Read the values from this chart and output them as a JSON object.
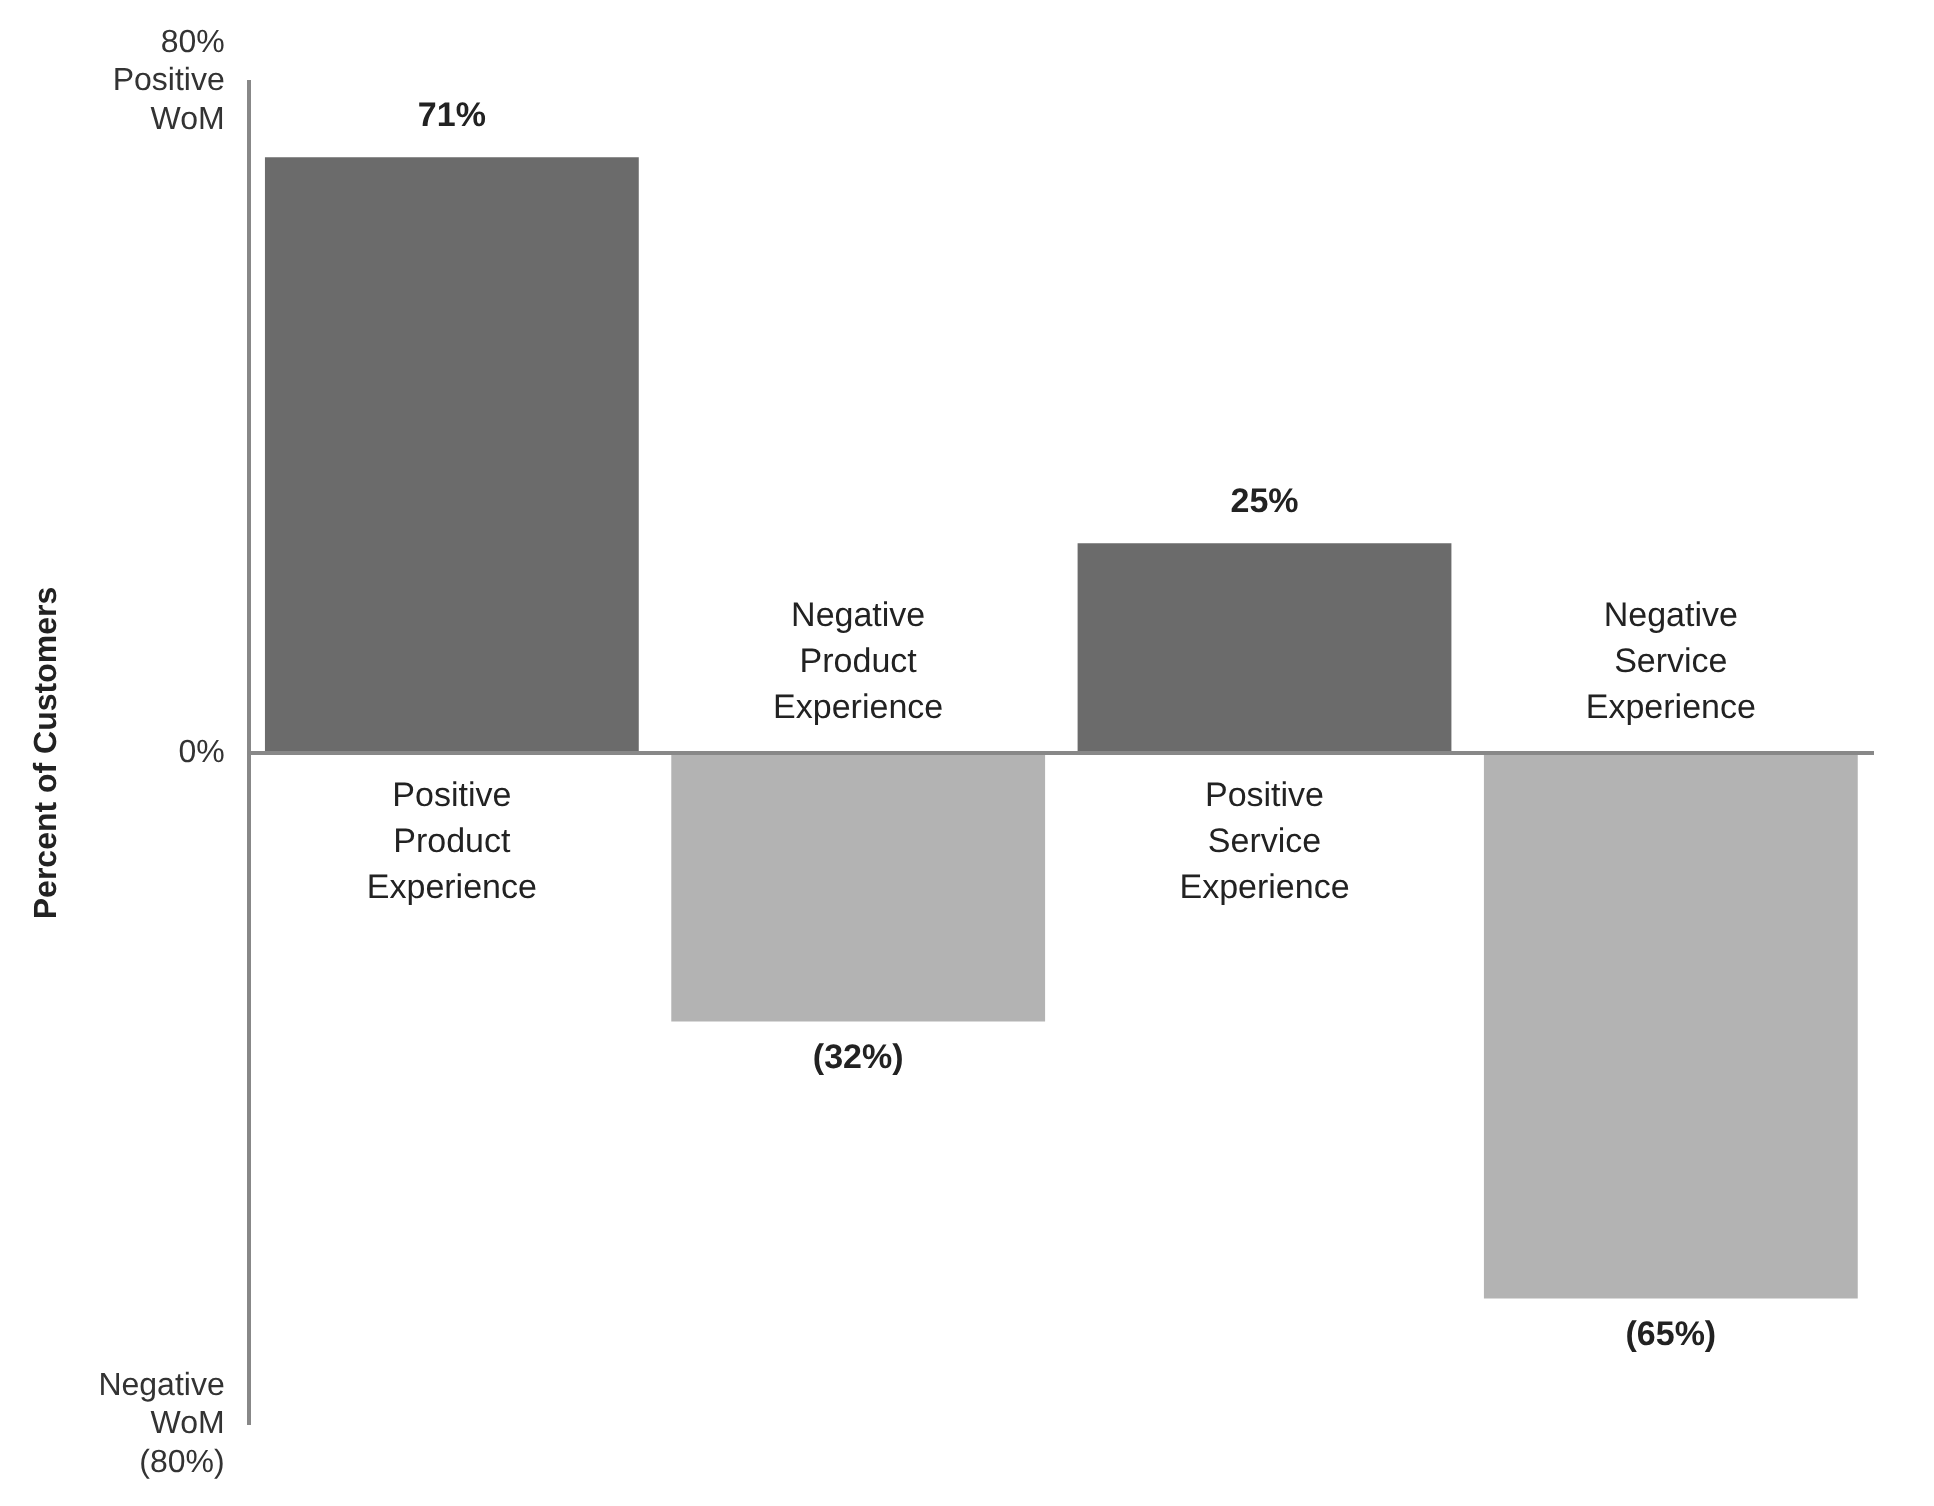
{
  "chart_data": {
    "type": "bar",
    "ylabel": "Percent of Customers",
    "categories": [
      "Positive Product Experience",
      "Negative Product Experience",
      "Positive Service Experience",
      "Negative Service Experience"
    ],
    "values": [
      71,
      -32,
      25,
      -65
    ],
    "colors": [
      "#6b6b6b",
      "#b3b3b3",
      "#6b6b6b",
      "#b3b3b3"
    ],
    "value_labels": [
      "71%",
      "(32%)",
      "25%",
      "(65%)"
    ],
    "ylim": [
      -80,
      80
    ],
    "yticks": [
      {
        "value": 80,
        "label": "80%\nPositive\nWoM"
      },
      {
        "value": 0,
        "label": "0%"
      },
      {
        "value": -80,
        "label": "Negative\nWoM\n(80%)"
      }
    ],
    "grid": false,
    "legend": false
  }
}
